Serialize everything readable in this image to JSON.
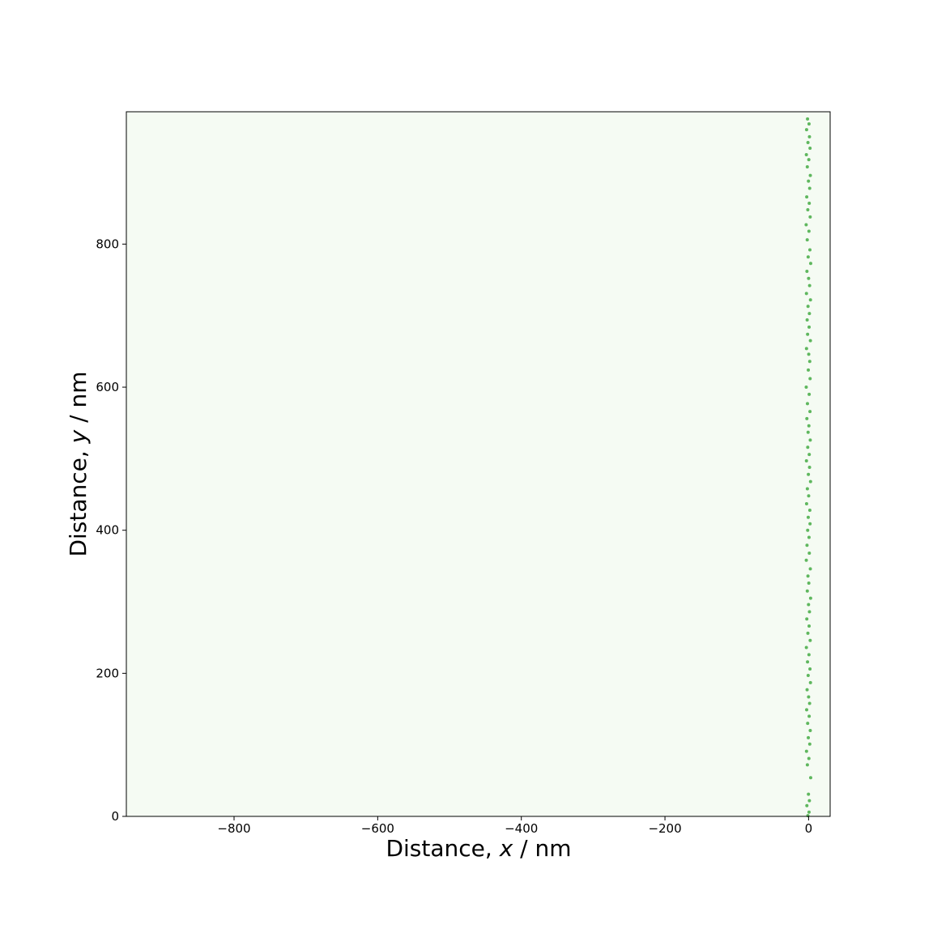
{
  "chart_data": {
    "type": "scatter",
    "xlabel_prefix": "Distance, ",
    "xlabel_var": "x",
    "xlabel_suffix": " / nm",
    "ylabel_prefix": "Distance, ",
    "ylabel_var": "y",
    "ylabel_suffix": " / nm",
    "xlim": [
      -950,
      30
    ],
    "ylim": [
      0,
      985
    ],
    "xticks": [
      -800,
      -600,
      -400,
      -200,
      0
    ],
    "xtick_labels": [
      "−800",
      "−600",
      "−400",
      "−200",
      "0"
    ],
    "yticks": [
      0,
      200,
      400,
      600,
      800
    ],
    "ytick_labels": [
      "0",
      "200",
      "400",
      "600",
      "800"
    ],
    "grid": false,
    "plot_background": "#f5fbf3",
    "point_color": "#2ca02c",
    "series": [
      {
        "points": [
          [
            -1.5,
            975
          ],
          [
            0.6,
            968
          ],
          [
            -2.8,
            960
          ],
          [
            1.2,
            950
          ],
          [
            -0.9,
            942
          ],
          [
            2.0,
            934
          ],
          [
            -3.1,
            925
          ],
          [
            0.3,
            918
          ],
          [
            -1.8,
            908
          ],
          [
            2.4,
            896
          ],
          [
            -0.2,
            888
          ],
          [
            1.5,
            878
          ],
          [
            -2.6,
            866
          ],
          [
            0.9,
            857
          ],
          [
            -1.1,
            848
          ],
          [
            2.2,
            838
          ],
          [
            -3.4,
            827
          ],
          [
            0.5,
            818
          ],
          [
            -1.9,
            806
          ],
          [
            1.8,
            792
          ],
          [
            -0.6,
            782
          ],
          [
            2.9,
            773
          ],
          [
            -2.3,
            762
          ],
          [
            0.0,
            752
          ],
          [
            1.4,
            742
          ],
          [
            -3.0,
            731
          ],
          [
            2.6,
            722
          ],
          [
            -0.8,
            713
          ],
          [
            1.1,
            703
          ],
          [
            -2.0,
            694
          ],
          [
            0.7,
            684
          ],
          [
            -1.4,
            674
          ],
          [
            2.5,
            665
          ],
          [
            -2.9,
            654
          ],
          [
            0.2,
            646
          ],
          [
            1.6,
            636
          ],
          [
            -0.4,
            624
          ],
          [
            2.1,
            612
          ],
          [
            -3.3,
            600
          ],
          [
            0.8,
            590
          ],
          [
            -1.6,
            577
          ],
          [
            1.9,
            566
          ],
          [
            -2.4,
            556
          ],
          [
            0.4,
            546
          ],
          [
            -0.7,
            537
          ],
          [
            2.3,
            526
          ],
          [
            -1.2,
            516
          ],
          [
            0.9,
            506
          ],
          [
            -3.0,
            497
          ],
          [
            1.3,
            488
          ],
          [
            -0.3,
            478
          ],
          [
            2.7,
            468
          ],
          [
            -1.7,
            458
          ],
          [
            0.1,
            448
          ],
          [
            -2.8,
            437
          ],
          [
            1.7,
            428
          ],
          [
            -0.5,
            418
          ],
          [
            2.0,
            409
          ],
          [
            -1.3,
            400
          ],
          [
            0.6,
            390
          ],
          [
            -2.2,
            379
          ],
          [
            1.0,
            368
          ],
          [
            -3.2,
            358
          ],
          [
            2.4,
            346
          ],
          [
            -0.9,
            336
          ],
          [
            0.3,
            326
          ],
          [
            -1.8,
            315
          ],
          [
            2.8,
            305
          ],
          [
            -0.1,
            296
          ],
          [
            1.2,
            286
          ],
          [
            -2.5,
            276
          ],
          [
            0.7,
            266
          ],
          [
            -1.0,
            256
          ],
          [
            2.2,
            246
          ],
          [
            -3.1,
            236
          ],
          [
            0.5,
            226
          ],
          [
            -1.5,
            216
          ],
          [
            1.9,
            206
          ],
          [
            -0.6,
            197
          ],
          [
            2.6,
            187
          ],
          [
            -2.1,
            177
          ],
          [
            0.0,
            167
          ],
          [
            1.4,
            158
          ],
          [
            -2.7,
            149
          ],
          [
            0.8,
            140
          ],
          [
            -1.3,
            130
          ],
          [
            2.3,
            120
          ],
          [
            -0.4,
            110
          ],
          [
            1.6,
            101
          ],
          [
            -2.9,
            91
          ],
          [
            0.4,
            81
          ],
          [
            -1.7,
            72
          ],
          [
            2.9,
            54
          ],
          [
            -0.2,
            31
          ],
          [
            1.1,
            22
          ],
          [
            -2.4,
            15
          ],
          [
            0.6,
            6
          ],
          [
            -1.0,
            1
          ]
        ]
      }
    ]
  }
}
